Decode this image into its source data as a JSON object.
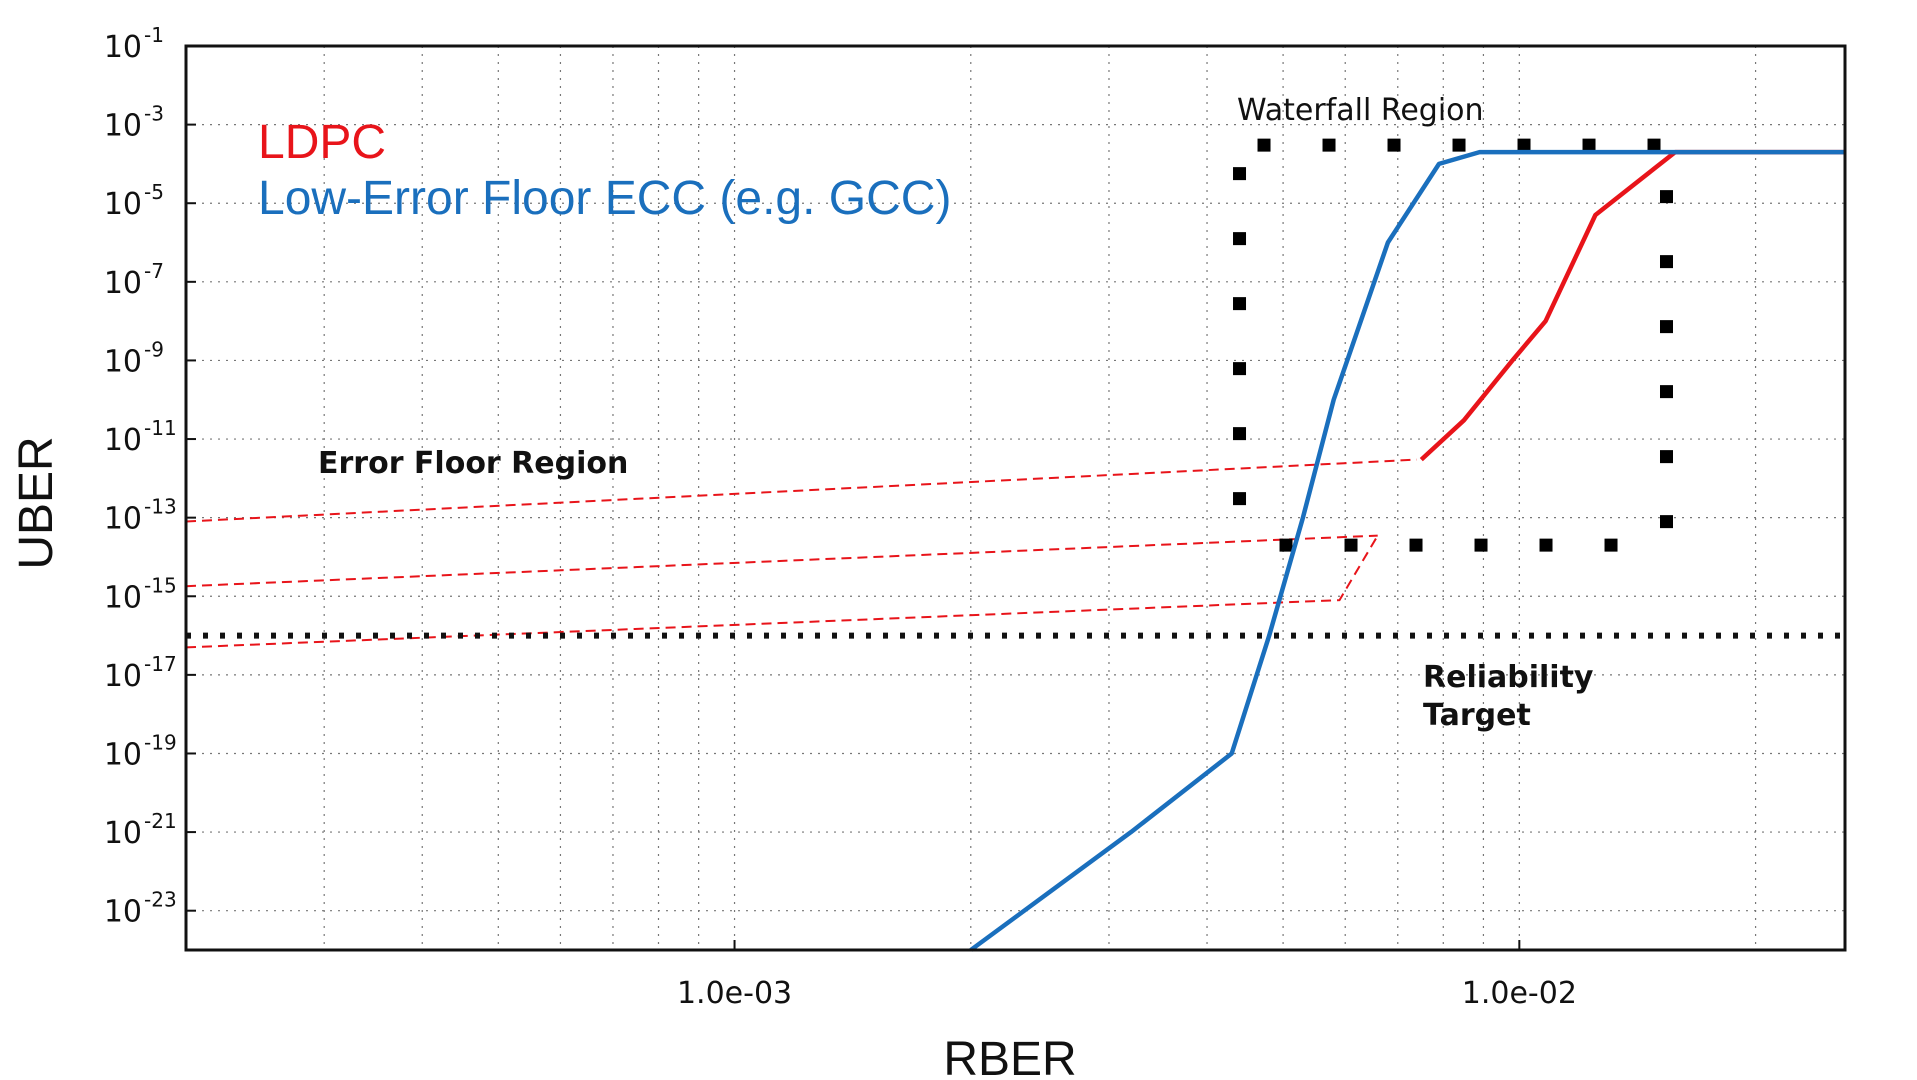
{
  "chart_data": {
    "type": "line",
    "xlabel": "RBER",
    "ylabel": "UBER",
    "x_scale": "log",
    "y_scale": "log",
    "xlim": [
      0.0002,
      0.026
    ],
    "ylim": [
      1e-24,
      0.1
    ],
    "x_ticks": [
      {
        "value": 0.001,
        "label": "1.0e-03"
      },
      {
        "value": 0.01,
        "label": "1.0e-02"
      }
    ],
    "y_ticks": [
      {
        "value": 0.1,
        "base": "10",
        "exp": "-1"
      },
      {
        "value": 0.001,
        "base": "10",
        "exp": "-3"
      },
      {
        "value": 1e-05,
        "base": "10",
        "exp": "-5"
      },
      {
        "value": 1e-07,
        "base": "10",
        "exp": "-7"
      },
      {
        "value": 1e-09,
        "base": "10",
        "exp": "-9"
      },
      {
        "value": 1e-11,
        "base": "10",
        "exp": "-11"
      },
      {
        "value": 1e-13,
        "base": "10",
        "exp": "-13"
      },
      {
        "value": 1e-15,
        "base": "10",
        "exp": "-15"
      },
      {
        "value": 1e-17,
        "base": "10",
        "exp": "-17"
      },
      {
        "value": 1e-19,
        "base": "10",
        "exp": "-19"
      },
      {
        "value": 1e-21,
        "base": "10",
        "exp": "-21"
      },
      {
        "value": 1e-23,
        "base": "10",
        "exp": "-23"
      }
    ],
    "grid": true,
    "colors": {
      "ldpc": "#e8141a",
      "gcc": "#1a6fbd",
      "target": "#111111"
    },
    "series": [
      {
        "name": "LDPC",
        "color": "#e8141a",
        "x": [
          0.0075,
          0.0085,
          0.0098,
          0.0108,
          0.0125,
          0.0158,
          0.026
        ],
        "y": [
          3e-12,
          3e-11,
          1e-09,
          1e-08,
          5e-06,
          0.0002,
          0.0002
        ]
      },
      {
        "name": "Low-Error Floor ECC (e.g. GCC)",
        "color": "#1a6fbd",
        "x": [
          0.002,
          0.0032,
          0.0043,
          0.0048,
          0.0053,
          0.0058,
          0.0068,
          0.0079,
          0.0089,
          0.026
        ],
        "y": [
          1e-24,
          1e-21,
          1e-19,
          1e-16,
          1e-13,
          1e-10,
          1e-06,
          0.0001,
          0.0002,
          0.0002
        ]
      }
    ],
    "error_floor_lines": [
      {
        "x": [
          0.0002,
          0.0074
        ],
        "y": [
          8e-14,
          3e-12
        ]
      },
      {
        "x": [
          0.0002,
          0.0066
        ],
        "y": [
          1.8e-15,
          3.5e-14
        ]
      },
      {
        "x": [
          0.0002,
          0.0059,
          0.0066
        ],
        "y": [
          5e-17,
          8e-16,
          3.5e-14
        ]
      }
    ],
    "reliability_target": 1e-16,
    "waterfall_box": {
      "x": [
        0.0044,
        0.0154
      ],
      "y": [
        0.0003,
        2e-14
      ]
    },
    "annotations": {
      "waterfall": "Waterfall Region",
      "error_floor": "Error Floor Region",
      "reliability_line1": "Reliability",
      "reliability_line2": "Target"
    },
    "legend": [
      {
        "label": "LDPC",
        "color": "#e8141a"
      },
      {
        "label": "Low-Error Floor ECC (e.g. GCC)",
        "color": "#1a6fbd"
      }
    ]
  }
}
